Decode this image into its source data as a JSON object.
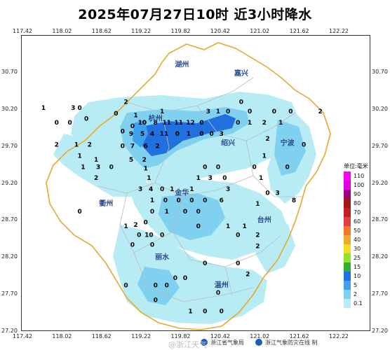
{
  "title": "2025年07月27日10时  近3小时降水",
  "x_ticks": [
    "117.42",
    "118.02",
    "118.62",
    "119.22",
    "119.82",
    "120.42",
    "121.02",
    "121.62",
    "122.22"
  ],
  "y_ticks": [
    "30.70",
    "30.20",
    "29.70",
    "29.20",
    "28.70",
    "28.20",
    "27.70",
    "27.20"
  ],
  "legend": {
    "title": "单位:毫米",
    "items": [
      {
        "value": "110",
        "color": "#ff00ff"
      },
      {
        "value": "100",
        "color": "#e000e0"
      },
      {
        "value": "90",
        "color": "#a00080"
      },
      {
        "value": "80",
        "color": "#a01818"
      },
      {
        "value": "70",
        "color": "#c02020"
      },
      {
        "value": "60",
        "color": "#e04040"
      },
      {
        "value": "50",
        "color": "#f07828"
      },
      {
        "value": "40",
        "color": "#f0a830"
      },
      {
        "value": "30",
        "color": "#f0e020"
      },
      {
        "value": "25",
        "color": "#98e030"
      },
      {
        "value": "15",
        "color": "#30b030"
      },
      {
        "value": "10",
        "color": "#2070e0"
      },
      {
        "value": "5",
        "color": "#40a0f0"
      },
      {
        "value": "2",
        "color": "#80d0f0"
      },
      {
        "value": "0.1",
        "color": "#b8ecf4"
      }
    ]
  },
  "cities": [
    {
      "name": "湖州",
      "lon": 119.85,
      "lat": 30.78
    },
    {
      "name": "嘉兴",
      "lon": 120.75,
      "lat": 30.66
    },
    {
      "name": "杭州",
      "lon": 119.45,
      "lat": 30.05
    },
    {
      "name": "绍兴",
      "lon": 120.55,
      "lat": 29.72
    },
    {
      "name": "宁波",
      "lon": 121.45,
      "lat": 29.72
    },
    {
      "name": "金华",
      "lon": 119.85,
      "lat": 29.05
    },
    {
      "name": "衢州",
      "lon": 118.7,
      "lat": 28.9
    },
    {
      "name": "台州",
      "lon": 121.1,
      "lat": 28.68
    },
    {
      "name": "丽水",
      "lon": 119.55,
      "lat": 28.18
    },
    {
      "name": "温州",
      "lon": 120.45,
      "lat": 27.8
    }
  ],
  "stations": [
    {
      "v": "1",
      "lon": 117.75,
      "lat": 30.2
    },
    {
      "v": "3",
      "lon": 118.2,
      "lat": 30.2
    },
    {
      "v": "0",
      "lon": 118.3,
      "lat": 30.2
    },
    {
      "v": "0",
      "lon": 117.95,
      "lat": 30.0
    },
    {
      "v": "0",
      "lon": 118.15,
      "lat": 30.0
    },
    {
      "v": "0",
      "lon": 118.4,
      "lat": 30.05
    },
    {
      "v": "2",
      "lon": 119.0,
      "lat": 30.28
    },
    {
      "v": "0",
      "lon": 118.85,
      "lat": 30.12
    },
    {
      "v": "1",
      "lon": 119.15,
      "lat": 30.1
    },
    {
      "v": "10",
      "lon": 119.25,
      "lat": 30.0
    },
    {
      "v": "8",
      "lon": 119.45,
      "lat": 30.0
    },
    {
      "v": "11",
      "lon": 119.62,
      "lat": 30.0
    },
    {
      "v": "11",
      "lon": 119.8,
      "lat": 30.0
    },
    {
      "v": "12",
      "lon": 119.98,
      "lat": 30.0
    },
    {
      "v": "1",
      "lon": 119.55,
      "lat": 30.15
    },
    {
      "v": "3",
      "lon": 120.25,
      "lat": 30.15
    },
    {
      "v": "1",
      "lon": 120.4,
      "lat": 30.15
    },
    {
      "v": "0",
      "lon": 120.55,
      "lat": 30.15
    },
    {
      "v": "0",
      "lon": 120.75,
      "lat": 30.28
    },
    {
      "v": "0",
      "lon": 120.88,
      "lat": 30.15
    },
    {
      "v": "0",
      "lon": 121.25,
      "lat": 30.15
    },
    {
      "v": "0",
      "lon": 121.5,
      "lat": 30.15
    },
    {
      "v": "2",
      "lon": 121.95,
      "lat": 30.15
    },
    {
      "v": "0",
      "lon": 120.15,
      "lat": 30.0
    },
    {
      "v": "0",
      "lon": 120.7,
      "lat": 30.0
    },
    {
      "v": "1",
      "lon": 120.88,
      "lat": 30.0
    },
    {
      "v": "2",
      "lon": 121.1,
      "lat": 30.0
    },
    {
      "v": "1",
      "lon": 121.35,
      "lat": 30.0
    },
    {
      "v": "0",
      "lon": 118.95,
      "lat": 29.88
    },
    {
      "v": "0",
      "lon": 119.1,
      "lat": 29.95
    },
    {
      "v": "9",
      "lon": 119.08,
      "lat": 29.85
    },
    {
      "v": "5",
      "lon": 119.25,
      "lat": 29.85
    },
    {
      "v": "4",
      "lon": 119.4,
      "lat": 29.85
    },
    {
      "v": "11",
      "lon": 119.58,
      "lat": 29.85
    },
    {
      "v": "0",
      "lon": 119.78,
      "lat": 29.85
    },
    {
      "v": "1",
      "lon": 119.95,
      "lat": 29.85
    },
    {
      "v": "0",
      "lon": 120.15,
      "lat": 29.85
    },
    {
      "v": "0",
      "lon": 120.3,
      "lat": 29.85
    },
    {
      "v": "3",
      "lon": 120.45,
      "lat": 29.85
    },
    {
      "v": "2",
      "lon": 121.15,
      "lat": 29.78
    },
    {
      "v": "2",
      "lon": 117.95,
      "lat": 29.7
    },
    {
      "v": "1",
      "lon": 118.25,
      "lat": 29.7
    },
    {
      "v": "2",
      "lon": 118.45,
      "lat": 29.7
    },
    {
      "v": "0",
      "lon": 118.95,
      "lat": 29.68
    },
    {
      "v": "7",
      "lon": 119.1,
      "lat": 29.68
    },
    {
      "v": "6",
      "lon": 119.3,
      "lat": 29.68
    },
    {
      "v": "2",
      "lon": 119.48,
      "lat": 29.68
    },
    {
      "v": "1",
      "lon": 118.3,
      "lat": 29.55
    },
    {
      "v": "1",
      "lon": 118.55,
      "lat": 29.5
    },
    {
      "v": "5",
      "lon": 119.08,
      "lat": 29.5
    },
    {
      "v": "2",
      "lon": 119.28,
      "lat": 29.5
    },
    {
      "v": "1",
      "lon": 121.1,
      "lat": 29.55
    },
    {
      "v": "0",
      "lon": 121.7,
      "lat": 29.7
    },
    {
      "v": "1",
      "lon": 118.35,
      "lat": 29.4
    },
    {
      "v": "3",
      "lon": 118.58,
      "lat": 29.4
    },
    {
      "v": "0",
      "lon": 118.78,
      "lat": 29.4
    },
    {
      "v": "1",
      "lon": 119.3,
      "lat": 29.38
    },
    {
      "v": "0",
      "lon": 120.2,
      "lat": 29.4
    },
    {
      "v": "0",
      "lon": 120.4,
      "lat": 29.4
    },
    {
      "v": "0",
      "lon": 120.95,
      "lat": 29.4
    },
    {
      "v": "0",
      "lon": 121.45,
      "lat": 29.4
    },
    {
      "v": "2",
      "lon": 118.55,
      "lat": 29.25
    },
    {
      "v": "1",
      "lon": 119.35,
      "lat": 29.25
    },
    {
      "v": "1",
      "lon": 120.1,
      "lat": 29.25
    },
    {
      "v": "3",
      "lon": 120.28,
      "lat": 29.25
    },
    {
      "v": "0",
      "lon": 120.5,
      "lat": 29.25
    },
    {
      "v": "1",
      "lon": 121.05,
      "lat": 29.25
    },
    {
      "v": "3",
      "lon": 119.22,
      "lat": 29.1
    },
    {
      "v": "4",
      "lon": 119.38,
      "lat": 29.1
    },
    {
      "v": "0",
      "lon": 119.55,
      "lat": 29.1
    },
    {
      "v": "1",
      "lon": 119.7,
      "lat": 29.1
    },
    {
      "v": "1",
      "lon": 120.0,
      "lat": 29.1
    },
    {
      "v": "3",
      "lon": 120.55,
      "lat": 29.1
    },
    {
      "v": "0",
      "lon": 121.15,
      "lat": 29.05
    },
    {
      "v": "3",
      "lon": 121.3,
      "lat": 29.05
    },
    {
      "v": "1",
      "lon": 119.4,
      "lat": 28.95
    },
    {
      "v": "0",
      "lon": 119.6,
      "lat": 28.95
    },
    {
      "v": "0",
      "lon": 119.8,
      "lat": 28.95
    },
    {
      "v": "0",
      "lon": 120.0,
      "lat": 28.95
    },
    {
      "v": "0",
      "lon": 120.2,
      "lat": 28.95
    },
    {
      "v": "6",
      "lon": 120.45,
      "lat": 28.95
    },
    {
      "v": "1",
      "lon": 121.0,
      "lat": 28.9
    },
    {
      "v": "8",
      "lon": 121.55,
      "lat": 28.95
    },
    {
      "v": "0",
      "lon": 118.3,
      "lat": 28.8
    },
    {
      "v": "0",
      "lon": 119.4,
      "lat": 28.8
    },
    {
      "v": "1",
      "lon": 119.62,
      "lat": 28.8
    },
    {
      "v": "0",
      "lon": 119.9,
      "lat": 28.8
    },
    {
      "v": "0",
      "lon": 120.1,
      "lat": 28.8
    },
    {
      "v": "0",
      "lon": 119.3,
      "lat": 28.65
    },
    {
      "v": "1",
      "lon": 119.0,
      "lat": 28.6
    },
    {
      "v": "2",
      "lon": 119.15,
      "lat": 28.62
    },
    {
      "v": "0",
      "lon": 120.1,
      "lat": 28.6
    },
    {
      "v": "1",
      "lon": 120.55,
      "lat": 28.6
    },
    {
      "v": "1",
      "lon": 120.8,
      "lat": 28.6
    },
    {
      "v": "0",
      "lon": 119.2,
      "lat": 28.48
    },
    {
      "v": "10",
      "lon": 119.35,
      "lat": 28.48
    },
    {
      "v": "0",
      "lon": 119.55,
      "lat": 28.48
    },
    {
      "v": "0",
      "lon": 120.7,
      "lat": 28.48
    },
    {
      "v": "2",
      "lon": 121.0,
      "lat": 28.48
    },
    {
      "v": "0",
      "lon": 119.1,
      "lat": 28.35
    },
    {
      "v": "0",
      "lon": 119.4,
      "lat": 28.35
    },
    {
      "v": "2",
      "lon": 121.0,
      "lat": 28.33
    },
    {
      "v": "0",
      "lon": 120.2,
      "lat": 28.1
    },
    {
      "v": "0",
      "lon": 120.7,
      "lat": 28.1
    },
    {
      "v": "2",
      "lon": 120.85,
      "lat": 27.95
    },
    {
      "v": "0",
      "lon": 119.0,
      "lat": 27.8
    },
    {
      "v": "0",
      "lon": 119.45,
      "lat": 27.8
    },
    {
      "v": "0",
      "lon": 119.62,
      "lat": 27.8
    },
    {
      "v": "0",
      "lon": 119.75,
      "lat": 27.9
    },
    {
      "v": "0",
      "lon": 119.9,
      "lat": 27.9
    },
    {
      "v": "0",
      "lon": 120.4,
      "lat": 27.7
    },
    {
      "v": "0",
      "lon": 119.45,
      "lat": 27.6
    },
    {
      "v": "1",
      "lon": 119.98,
      "lat": 27.45
    },
    {
      "v": "0",
      "lon": 120.2,
      "lat": 27.45
    },
    {
      "v": "0",
      "lon": 120.45,
      "lat": 27.45
    }
  ],
  "footer": {
    "left": "浙江省气象局",
    "right": "浙江气象防灾在线 制",
    "watermark": "@浙江天气"
  },
  "colors": {
    "light_rain": "#b8ecf4",
    "moderate_rain": "#80d0f0",
    "heavy_rain": "#2070e0",
    "province_border": "#e8a830",
    "city_border": "#bbbbbb"
  }
}
